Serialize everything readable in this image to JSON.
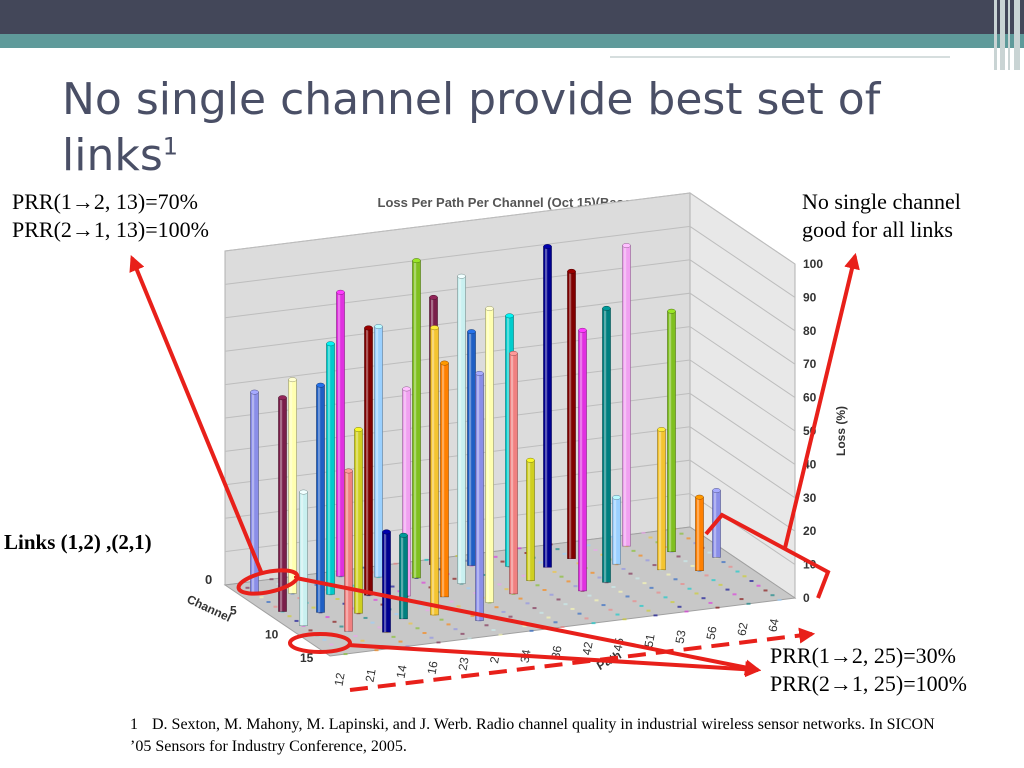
{
  "slide": {
    "title": "No single channel provide best set of links",
    "title_superscript": "1",
    "annotation_top_left": [
      "PRR(1→2, 13)=70%",
      "PRR(2→1, 13)=100%"
    ],
    "annotation_top_right": [
      "No single channel",
      "good for all links"
    ],
    "annotation_links": "Links (1,2) ,(2,1)",
    "annotation_bottom_right": [
      "PRR(1→2, 25)=30%",
      "PRR(2→1, 25)=100%"
    ],
    "footnote_number": "1",
    "footnote_text": "D. Sexton, M. Mahony, M. Lapinski, and J. Werb. Radio channel quality in industrial wireless sensor networks. In SICON ’05 Sensors for Industry Conference, 2005.",
    "colors": {
      "header_dark": "#434759",
      "header_teal": "#5f9a9a",
      "title": "#4a4f66",
      "arrow_red": "#e8201a"
    }
  },
  "chart_data": {
    "type": "bar",
    "variant": "3d-bar",
    "title": "Loss Per Path Per Channel (Oct 15)(Basement)",
    "zlabel": "Loss (%)",
    "xlabel": "Path",
    "ylabel": "Channel",
    "zlim": [
      0,
      100
    ],
    "z_ticks": [
      "0",
      "10",
      "20",
      "30",
      "40",
      "50",
      "60",
      "70",
      "80",
      "90",
      "100"
    ],
    "path_ticks": [
      "12",
      "21",
      "14",
      "16",
      "23",
      "2",
      "34",
      "36",
      "42",
      "45",
      "51",
      "53",
      "56",
      "62",
      "64"
    ],
    "channel_ticks": [
      "0",
      "5",
      "10",
      "15"
    ],
    "left_axis_zero": "0",
    "bars": [
      {
        "path": "12",
        "channel": 2,
        "value": 60
      },
      {
        "path": "12",
        "channel": 6,
        "value": 64
      },
      {
        "path": "12",
        "channel": 9,
        "value": 40
      },
      {
        "path": "21",
        "channel": 3,
        "value": 64
      },
      {
        "path": "21",
        "channel": 7,
        "value": 68
      },
      {
        "path": "21",
        "channel": 11,
        "value": 48
      },
      {
        "path": "14",
        "channel": 4,
        "value": 75
      },
      {
        "path": "14",
        "channel": 8,
        "value": 55
      },
      {
        "path": "14",
        "channel": 12,
        "value": 30
      },
      {
        "path": "16",
        "channel": 1,
        "value": 85
      },
      {
        "path": "16",
        "channel": 5,
        "value": 80
      },
      {
        "path": "16",
        "channel": 10,
        "value": 25
      },
      {
        "path": "23",
        "channel": 2,
        "value": 75
      },
      {
        "path": "23",
        "channel": 6,
        "value": 62
      },
      {
        "path": "23",
        "channel": 10,
        "value": 86
      },
      {
        "path": "2",
        "channel": 3,
        "value": 95
      },
      {
        "path": "2",
        "channel": 7,
        "value": 70
      },
      {
        "path": "2",
        "channel": 12,
        "value": 74
      },
      {
        "path": "34",
        "channel": 1,
        "value": 80
      },
      {
        "path": "34",
        "channel": 5,
        "value": 92
      },
      {
        "path": "34",
        "channel": 9,
        "value": 88
      },
      {
        "path": "36",
        "channel": 2,
        "value": 70
      },
      {
        "path": "36",
        "channel": 8,
        "value": 72
      },
      {
        "path": "42",
        "channel": 3,
        "value": 75
      },
      {
        "path": "42",
        "channel": 6,
        "value": 36
      },
      {
        "path": "45",
        "channel": 4,
        "value": 96
      },
      {
        "path": "45",
        "channel": 9,
        "value": 78
      },
      {
        "path": "51",
        "channel": 3,
        "value": 86
      },
      {
        "path": "51",
        "channel": 8,
        "value": 82
      },
      {
        "path": "53",
        "channel": 5,
        "value": 20
      },
      {
        "path": "56",
        "channel": 2,
        "value": 90
      },
      {
        "path": "56",
        "channel": 7,
        "value": 42
      },
      {
        "path": "62",
        "channel": 4,
        "value": 72
      },
      {
        "path": "62",
        "channel": 8,
        "value": 22
      },
      {
        "path": "64",
        "channel": 6,
        "value": 20
      }
    ],
    "colors": [
      "#8a8ee8",
      "#7a1f4a",
      "#c9f0f0",
      "#ffffb0",
      "#1f5fc4",
      "#f08080",
      "#00cccc",
      "#cfcf20",
      "#000090",
      "#e030e0",
      "#800000",
      "#008080",
      "#9ad0ff",
      "#f0a0f0",
      "#f4c430",
      "#80c020",
      "#ff8000"
    ]
  }
}
